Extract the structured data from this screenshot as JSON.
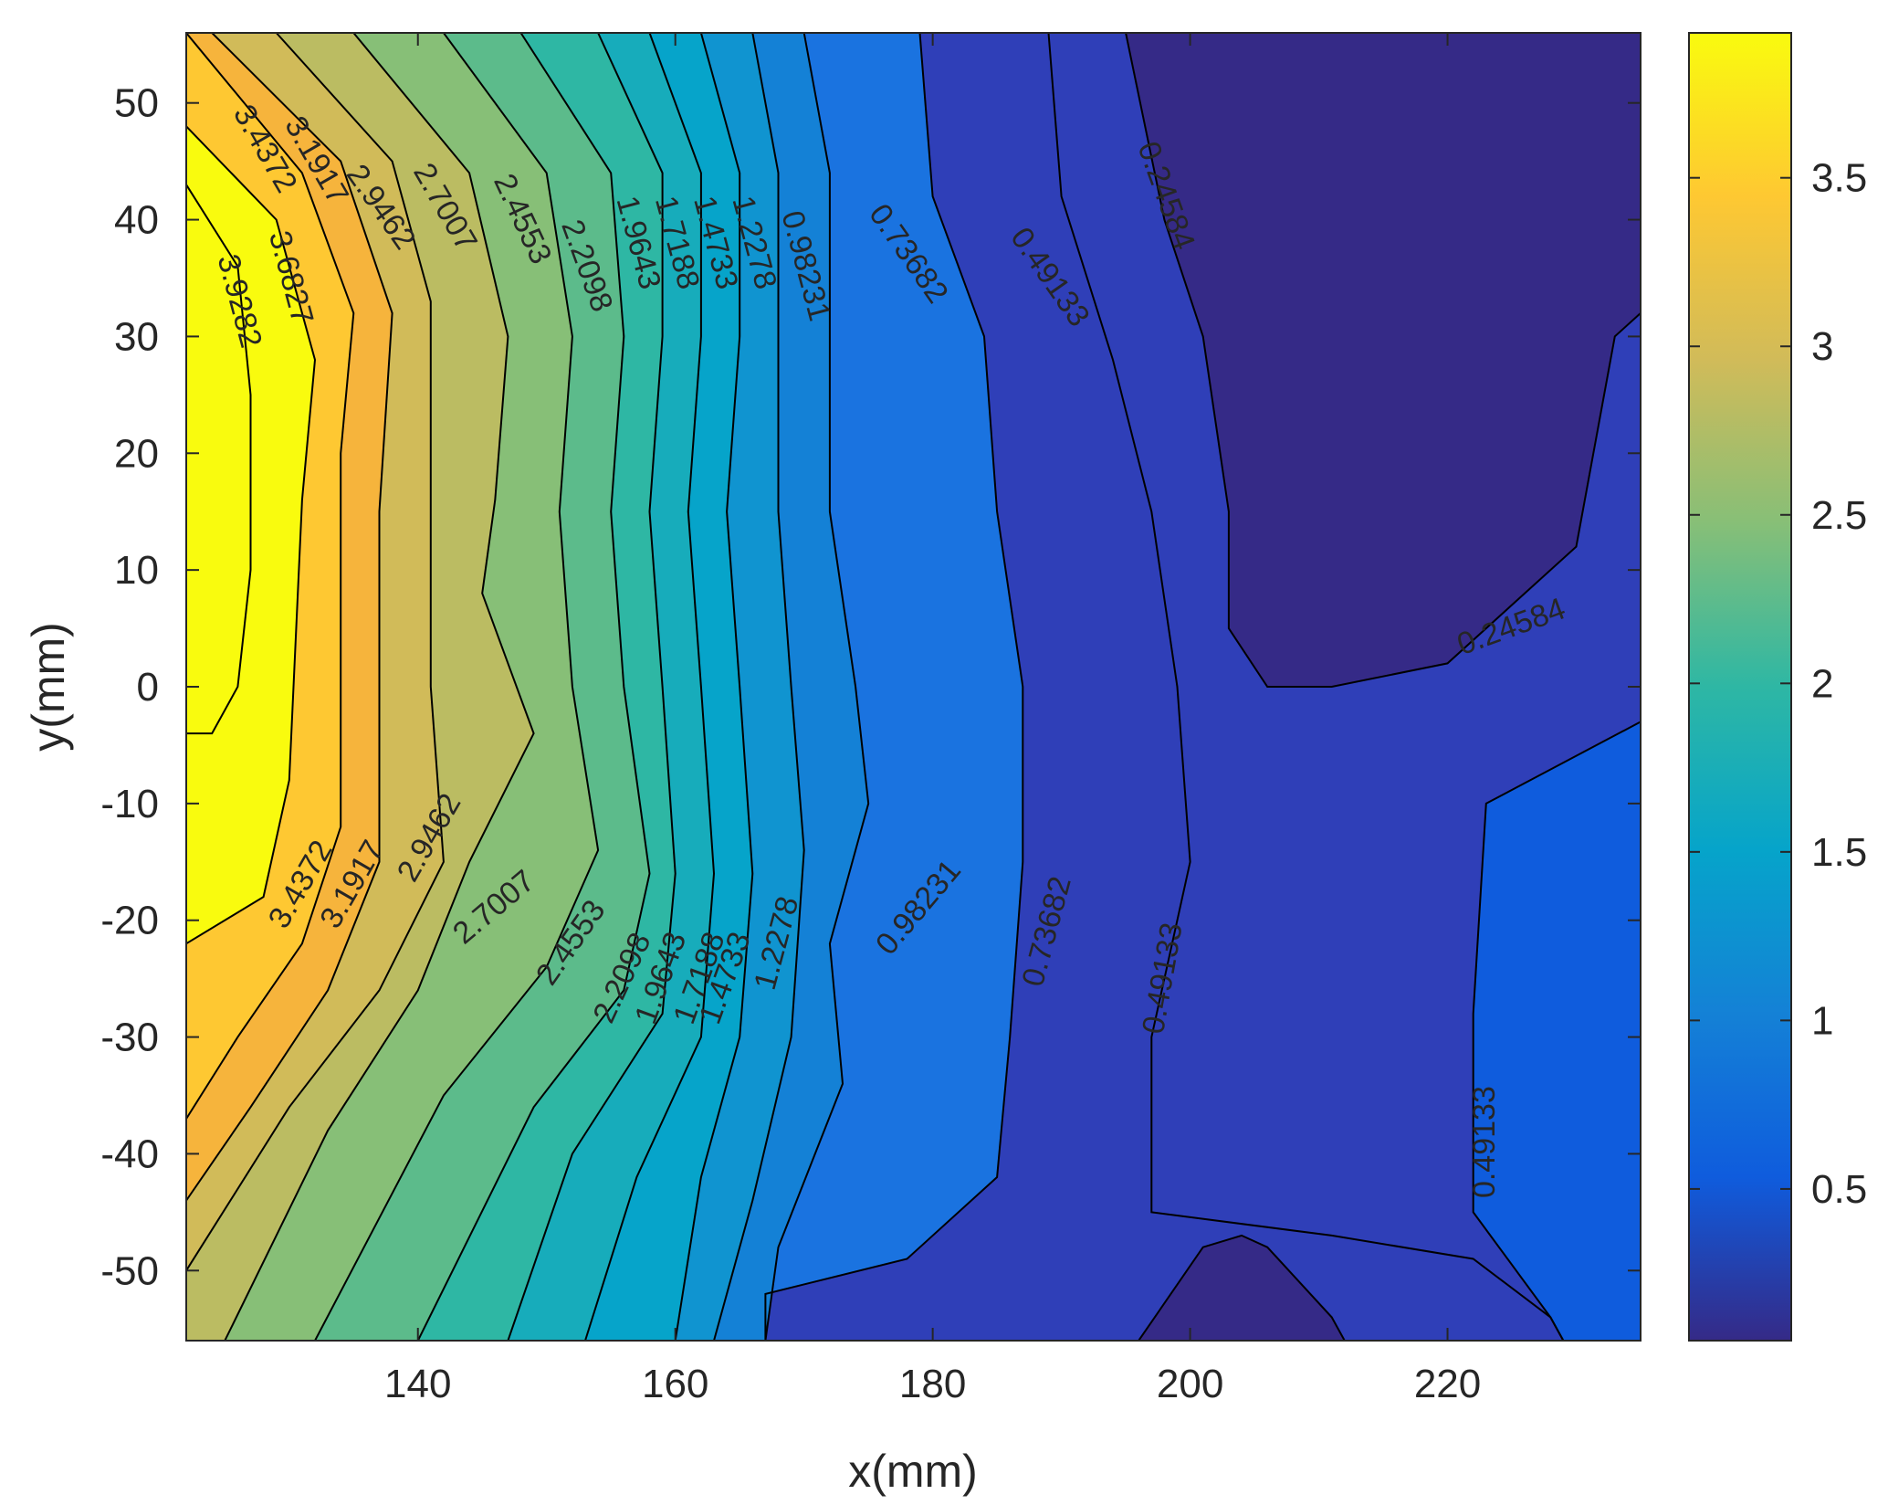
{
  "chart_data": {
    "type": "contour",
    "xlabel": "x(mm)",
    "ylabel": "y(mm)",
    "xlim": [
      122,
      235
    ],
    "ylim": [
      -56,
      56
    ],
    "x_ticks": [
      140,
      160,
      180,
      200,
      220
    ],
    "y_ticks": [
      50,
      40,
      30,
      20,
      10,
      0,
      -10,
      -20,
      -30,
      -40,
      -50
    ],
    "colorbar": {
      "range": [
        0.05,
        3.93
      ],
      "ticks": [
        0.5,
        1,
        1.5,
        2,
        2.5,
        3,
        3.5
      ],
      "colormap": "parula",
      "stops": [
        "#352a87",
        "#0f5cdd",
        "#1481d6",
        "#06a4ca",
        "#2eb7a4",
        "#87bf77",
        "#d1bb59",
        "#fec832",
        "#f9fb0e"
      ]
    },
    "levels": [
      {
        "value": 0.24584,
        "label": "0.24584",
        "color": "#352a87"
      },
      {
        "value": 0.49133,
        "label": "0.49133",
        "color": "#2f3fb8"
      },
      {
        "value": 0.73682,
        "label": "0.73682",
        "color": "#0f5cdd"
      },
      {
        "value": 0.98231,
        "label": "0.98231",
        "color": "#1a73e0"
      },
      {
        "value": 1.2278,
        "label": "1.2278",
        "color": "#1481d6"
      },
      {
        "value": 1.4733,
        "label": "1.4733",
        "color": "#1094d0"
      },
      {
        "value": 1.7188,
        "label": "1.7188",
        "color": "#06a4ca"
      },
      {
        "value": 1.9643,
        "label": "1.9643",
        "color": "#17acbb"
      },
      {
        "value": 2.2098,
        "label": "2.2098",
        "color": "#2eb7a4"
      },
      {
        "value": 2.4553,
        "label": "2.4553",
        "color": "#5cbb8b"
      },
      {
        "value": 2.7007,
        "label": "2.7007",
        "color": "#87bf77"
      },
      {
        "value": 2.9462,
        "label": "2.9462",
        "color": "#bbbc62"
      },
      {
        "value": 3.1917,
        "label": "3.1917",
        "color": "#d1bb59"
      },
      {
        "value": 3.4372,
        "label": "3.4372",
        "color": "#f6b43c"
      },
      {
        "value": 3.6827,
        "label": "3.6827",
        "color": "#fec832"
      },
      {
        "value": 3.9282,
        "label": "3.9282",
        "color": "#f9fb0e"
      }
    ],
    "contour_lines": [
      {
        "value": 3.9282,
        "points": [
          [
            122,
            43
          ],
          [
            126,
            36
          ],
          [
            127,
            25
          ],
          [
            127,
            10
          ],
          [
            126,
            0
          ],
          [
            124,
            -4
          ],
          [
            122,
            -4
          ]
        ]
      },
      {
        "value": 3.6827,
        "points": [
          [
            122,
            48
          ],
          [
            129,
            40
          ],
          [
            132,
            28
          ],
          [
            131,
            16
          ],
          [
            130,
            -8
          ],
          [
            128,
            -18
          ],
          [
            122,
            -22
          ]
        ]
      },
      {
        "value": 3.4372,
        "points": [
          [
            122,
            56
          ],
          [
            131,
            44
          ],
          [
            135,
            32
          ],
          [
            134,
            20
          ],
          [
            134,
            0
          ],
          [
            134,
            -12
          ],
          [
            131,
            -22
          ],
          [
            126,
            -30
          ],
          [
            122,
            -37
          ]
        ]
      },
      {
        "value": 3.1917,
        "points": [
          [
            124,
            56
          ],
          [
            134,
            45
          ],
          [
            138,
            32
          ],
          [
            137,
            15
          ],
          [
            137,
            0
          ],
          [
            137,
            -15
          ],
          [
            133,
            -26
          ],
          [
            127,
            -36
          ],
          [
            122,
            -44
          ]
        ]
      },
      {
        "value": 2.9462,
        "points": [
          [
            129,
            56
          ],
          [
            138,
            45
          ],
          [
            141,
            33
          ],
          [
            141,
            15
          ],
          [
            141,
            0
          ],
          [
            142,
            -15
          ],
          [
            137,
            -26
          ],
          [
            130,
            -36
          ],
          [
            122,
            -50
          ]
        ]
      },
      {
        "value": 2.7007,
        "points": [
          [
            135,
            56
          ],
          [
            144,
            44
          ],
          [
            147,
            30
          ],
          [
            146,
            16
          ],
          [
            145,
            8
          ],
          [
            149,
            -4
          ],
          [
            144,
            -15
          ],
          [
            140,
            -26
          ],
          [
            133,
            -38
          ],
          [
            125,
            -56
          ]
        ]
      },
      {
        "value": 2.4553,
        "points": [
          [
            142,
            56
          ],
          [
            150,
            44
          ],
          [
            152,
            30
          ],
          [
            151,
            15
          ],
          [
            152,
            0
          ],
          [
            154,
            -14
          ],
          [
            150,
            -24
          ],
          [
            142,
            -35
          ],
          [
            132,
            -56
          ]
        ]
      },
      {
        "value": 2.2098,
        "points": [
          [
            148,
            56
          ],
          [
            155,
            44
          ],
          [
            156,
            30
          ],
          [
            155,
            15
          ],
          [
            156,
            0
          ],
          [
            158,
            -16
          ],
          [
            156,
            -26
          ],
          [
            149,
            -36
          ],
          [
            140,
            -56
          ]
        ]
      },
      {
        "value": 1.9643,
        "points": [
          [
            154,
            56
          ],
          [
            159,
            44
          ],
          [
            159,
            30
          ],
          [
            158,
            15
          ],
          [
            159,
            0
          ],
          [
            160,
            -16
          ],
          [
            159,
            -28
          ],
          [
            152,
            -40
          ],
          [
            147,
            -56
          ]
        ]
      },
      {
        "value": 1.7188,
        "points": [
          [
            158,
            56
          ],
          [
            162,
            44
          ],
          [
            162,
            30
          ],
          [
            161,
            15
          ],
          [
            162,
            0
          ],
          [
            163,
            -16
          ],
          [
            162,
            -30
          ],
          [
            157,
            -42
          ],
          [
            153,
            -56
          ]
        ]
      },
      {
        "value": 1.4733,
        "points": [
          [
            162,
            56
          ],
          [
            165,
            44
          ],
          [
            165,
            30
          ],
          [
            164,
            15
          ],
          [
            165,
            0
          ],
          [
            166,
            -16
          ],
          [
            165,
            -30
          ],
          [
            162,
            -42
          ],
          [
            160,
            -56
          ]
        ]
      },
      {
        "value": 1.2278,
        "points": [
          [
            166,
            56
          ],
          [
            168,
            44
          ],
          [
            168,
            30
          ],
          [
            168,
            15
          ],
          [
            169,
            0
          ],
          [
            170,
            -14
          ],
          [
            169,
            -30
          ],
          [
            166,
            -44
          ],
          [
            163,
            -56
          ]
        ]
      },
      {
        "value": 0.98231,
        "points": [
          [
            170,
            56
          ],
          [
            172,
            44
          ],
          [
            172,
            30
          ],
          [
            172,
            15
          ],
          [
            174,
            0
          ],
          [
            175,
            -10
          ],
          [
            172,
            -22
          ],
          [
            173,
            -34
          ],
          [
            168,
            -48
          ],
          [
            167,
            -56
          ]
        ]
      },
      {
        "value": 0.73682,
        "points": [
          [
            179,
            56
          ],
          [
            180,
            42
          ],
          [
            184,
            30
          ],
          [
            185,
            15
          ],
          [
            187,
            0
          ],
          [
            187,
            -15
          ],
          [
            186,
            -30
          ],
          [
            185,
            -42
          ],
          [
            178,
            -49
          ],
          [
            167,
            -52
          ],
          [
            167,
            -56
          ]
        ]
      },
      {
        "value": 0.49133,
        "points": [
          [
            189,
            56
          ],
          [
            190,
            42
          ],
          [
            194,
            28
          ],
          [
            197,
            15
          ],
          [
            199,
            0
          ],
          [
            200,
            -15
          ],
          [
            197,
            -30
          ],
          [
            197,
            -45
          ],
          [
            211,
            -47
          ],
          [
            222,
            -49
          ],
          [
            228,
            -54
          ],
          [
            229,
            -56
          ]
        ]
      },
      {
        "value": 0.49133,
        "points": [
          [
            235,
            -3
          ],
          [
            223,
            -10
          ],
          [
            222,
            -28
          ],
          [
            222,
            -45
          ],
          [
            228,
            -54
          ],
          [
            229,
            -56
          ]
        ]
      },
      {
        "value": 0.24584,
        "points": [
          [
            195,
            56
          ],
          [
            198,
            40
          ],
          [
            201,
            30
          ],
          [
            203,
            15
          ],
          [
            203,
            5
          ],
          [
            206,
            0
          ],
          [
            211,
            0
          ],
          [
            220,
            2
          ],
          [
            230,
            12
          ],
          [
            233,
            30
          ],
          [
            235,
            32
          ]
        ]
      },
      {
        "value": 0.24584,
        "points": [
          [
            196,
            -56
          ],
          [
            201,
            -48
          ],
          [
            204,
            -47
          ],
          [
            206,
            -48
          ],
          [
            211,
            -54
          ],
          [
            212,
            -56
          ]
        ]
      }
    ],
    "contour_labels": [
      {
        "text": "3.9282",
        "x": 126,
        "y": 33,
        "angle": 75
      },
      {
        "text": "3.6827",
        "x": 130,
        "y": 35,
        "angle": 75
      },
      {
        "text": "3.4372",
        "x": 128,
        "y": 46,
        "angle": 60
      },
      {
        "text": "3.1917",
        "x": 132,
        "y": 45,
        "angle": 60
      },
      {
        "text": "2.9462",
        "x": 137,
        "y": 41,
        "angle": 55
      },
      {
        "text": "2.7007",
        "x": 142,
        "y": 41,
        "angle": 60
      },
      {
        "text": "2.4553",
        "x": 148,
        "y": 40,
        "angle": 65
      },
      {
        "text": "2.2098",
        "x": 153,
        "y": 36,
        "angle": 70
      },
      {
        "text": "1.9643",
        "x": 157,
        "y": 38,
        "angle": 75
      },
      {
        "text": "1.7188",
        "x": 160,
        "y": 38,
        "angle": 75
      },
      {
        "text": "1.4733",
        "x": 163,
        "y": 38,
        "angle": 75
      },
      {
        "text": "1.2278",
        "x": 166,
        "y": 38,
        "angle": 75
      },
      {
        "text": "0.98231",
        "x": 170,
        "y": 36,
        "angle": 75
      },
      {
        "text": "0.73682",
        "x": 178,
        "y": 37,
        "angle": 55
      },
      {
        "text": "0.49133",
        "x": 189,
        "y": 35,
        "angle": 55
      },
      {
        "text": "0.24584",
        "x": 198,
        "y": 42,
        "angle": 70
      },
      {
        "text": "0.24584",
        "x": 225,
        "y": 5,
        "angle": -20
      },
      {
        "text": "3.4372",
        "x": 131,
        "y": -17,
        "angle": -60
      },
      {
        "text": "3.1917",
        "x": 135,
        "y": -17,
        "angle": -60
      },
      {
        "text": "2.9462",
        "x": 141,
        "y": -13,
        "angle": -60
      },
      {
        "text": "2.7007",
        "x": 146,
        "y": -19,
        "angle": -40
      },
      {
        "text": "2.4553",
        "x": 152,
        "y": -22,
        "angle": -55
      },
      {
        "text": "2.2098",
        "x": 156,
        "y": -25,
        "angle": -65
      },
      {
        "text": "1.9643",
        "x": 159,
        "y": -25,
        "angle": -70
      },
      {
        "text": "1.7188",
        "x": 162,
        "y": -25,
        "angle": -70
      },
      {
        "text": "1.4733",
        "x": 164,
        "y": -25,
        "angle": -70
      },
      {
        "text": "1.2278",
        "x": 168,
        "y": -22,
        "angle": -75
      },
      {
        "text": "0.98231",
        "x": 179,
        "y": -19,
        "angle": -50
      },
      {
        "text": "0.73682",
        "x": 189,
        "y": -21,
        "angle": -75
      },
      {
        "text": "0.49133",
        "x": 198,
        "y": -25,
        "angle": -80
      },
      {
        "text": "0.49133",
        "x": 223,
        "y": -39,
        "angle": -90
      }
    ]
  }
}
